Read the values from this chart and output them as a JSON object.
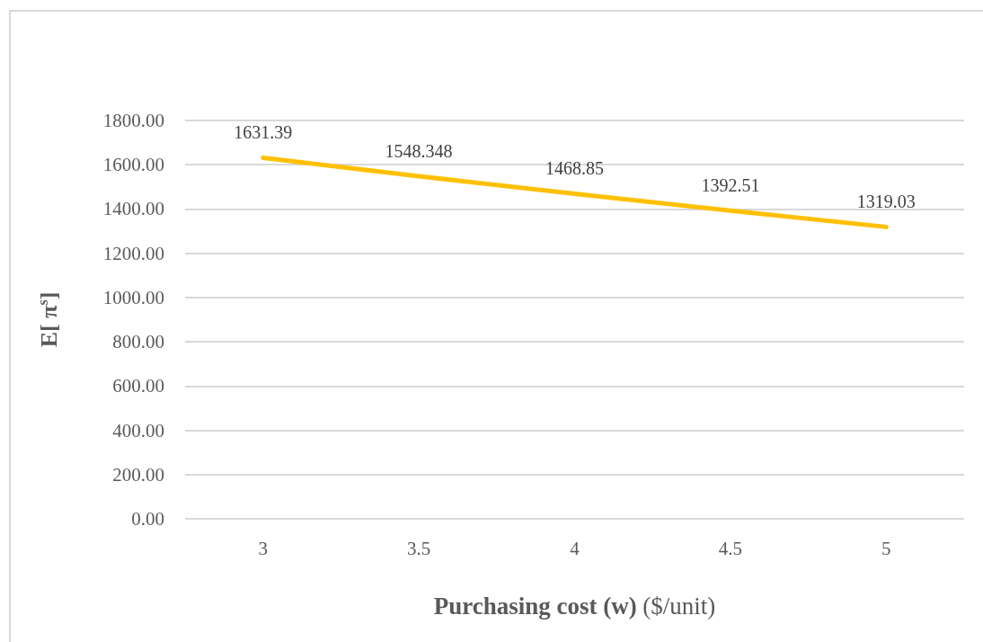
{
  "chart_data": {
    "type": "line",
    "xlabel": "Purchasing cost (w) ($/unit)",
    "ylabel": "E[ π$^{s}$]",
    "categories": [
      "3",
      "3.5",
      "4",
      "4.5",
      "5"
    ],
    "values": [
      1631.39,
      1548.348,
      1468.85,
      1392.51,
      1319.03
    ],
    "color": "#ffc000",
    "ylim": [
      0,
      1800
    ],
    "yticks": [
      {
        "value": 0,
        "label": "0.00"
      },
      {
        "value": 200,
        "label": "200.00"
      },
      {
        "value": 400,
        "label": "400.00"
      },
      {
        "value": 600,
        "label": "600.00"
      },
      {
        "value": 800,
        "label": "800.00"
      },
      {
        "value": 1000,
        "label": "1000.00"
      },
      {
        "value": 1200,
        "label": "1200.00"
      },
      {
        "value": 1400,
        "label": "1400.00"
      },
      {
        "value": 1600,
        "label": "1600.00"
      },
      {
        "value": 1800,
        "label": "1800.00"
      }
    ],
    "grid": "y",
    "marker": "none",
    "line_style": "solid",
    "data_labels": true
  }
}
